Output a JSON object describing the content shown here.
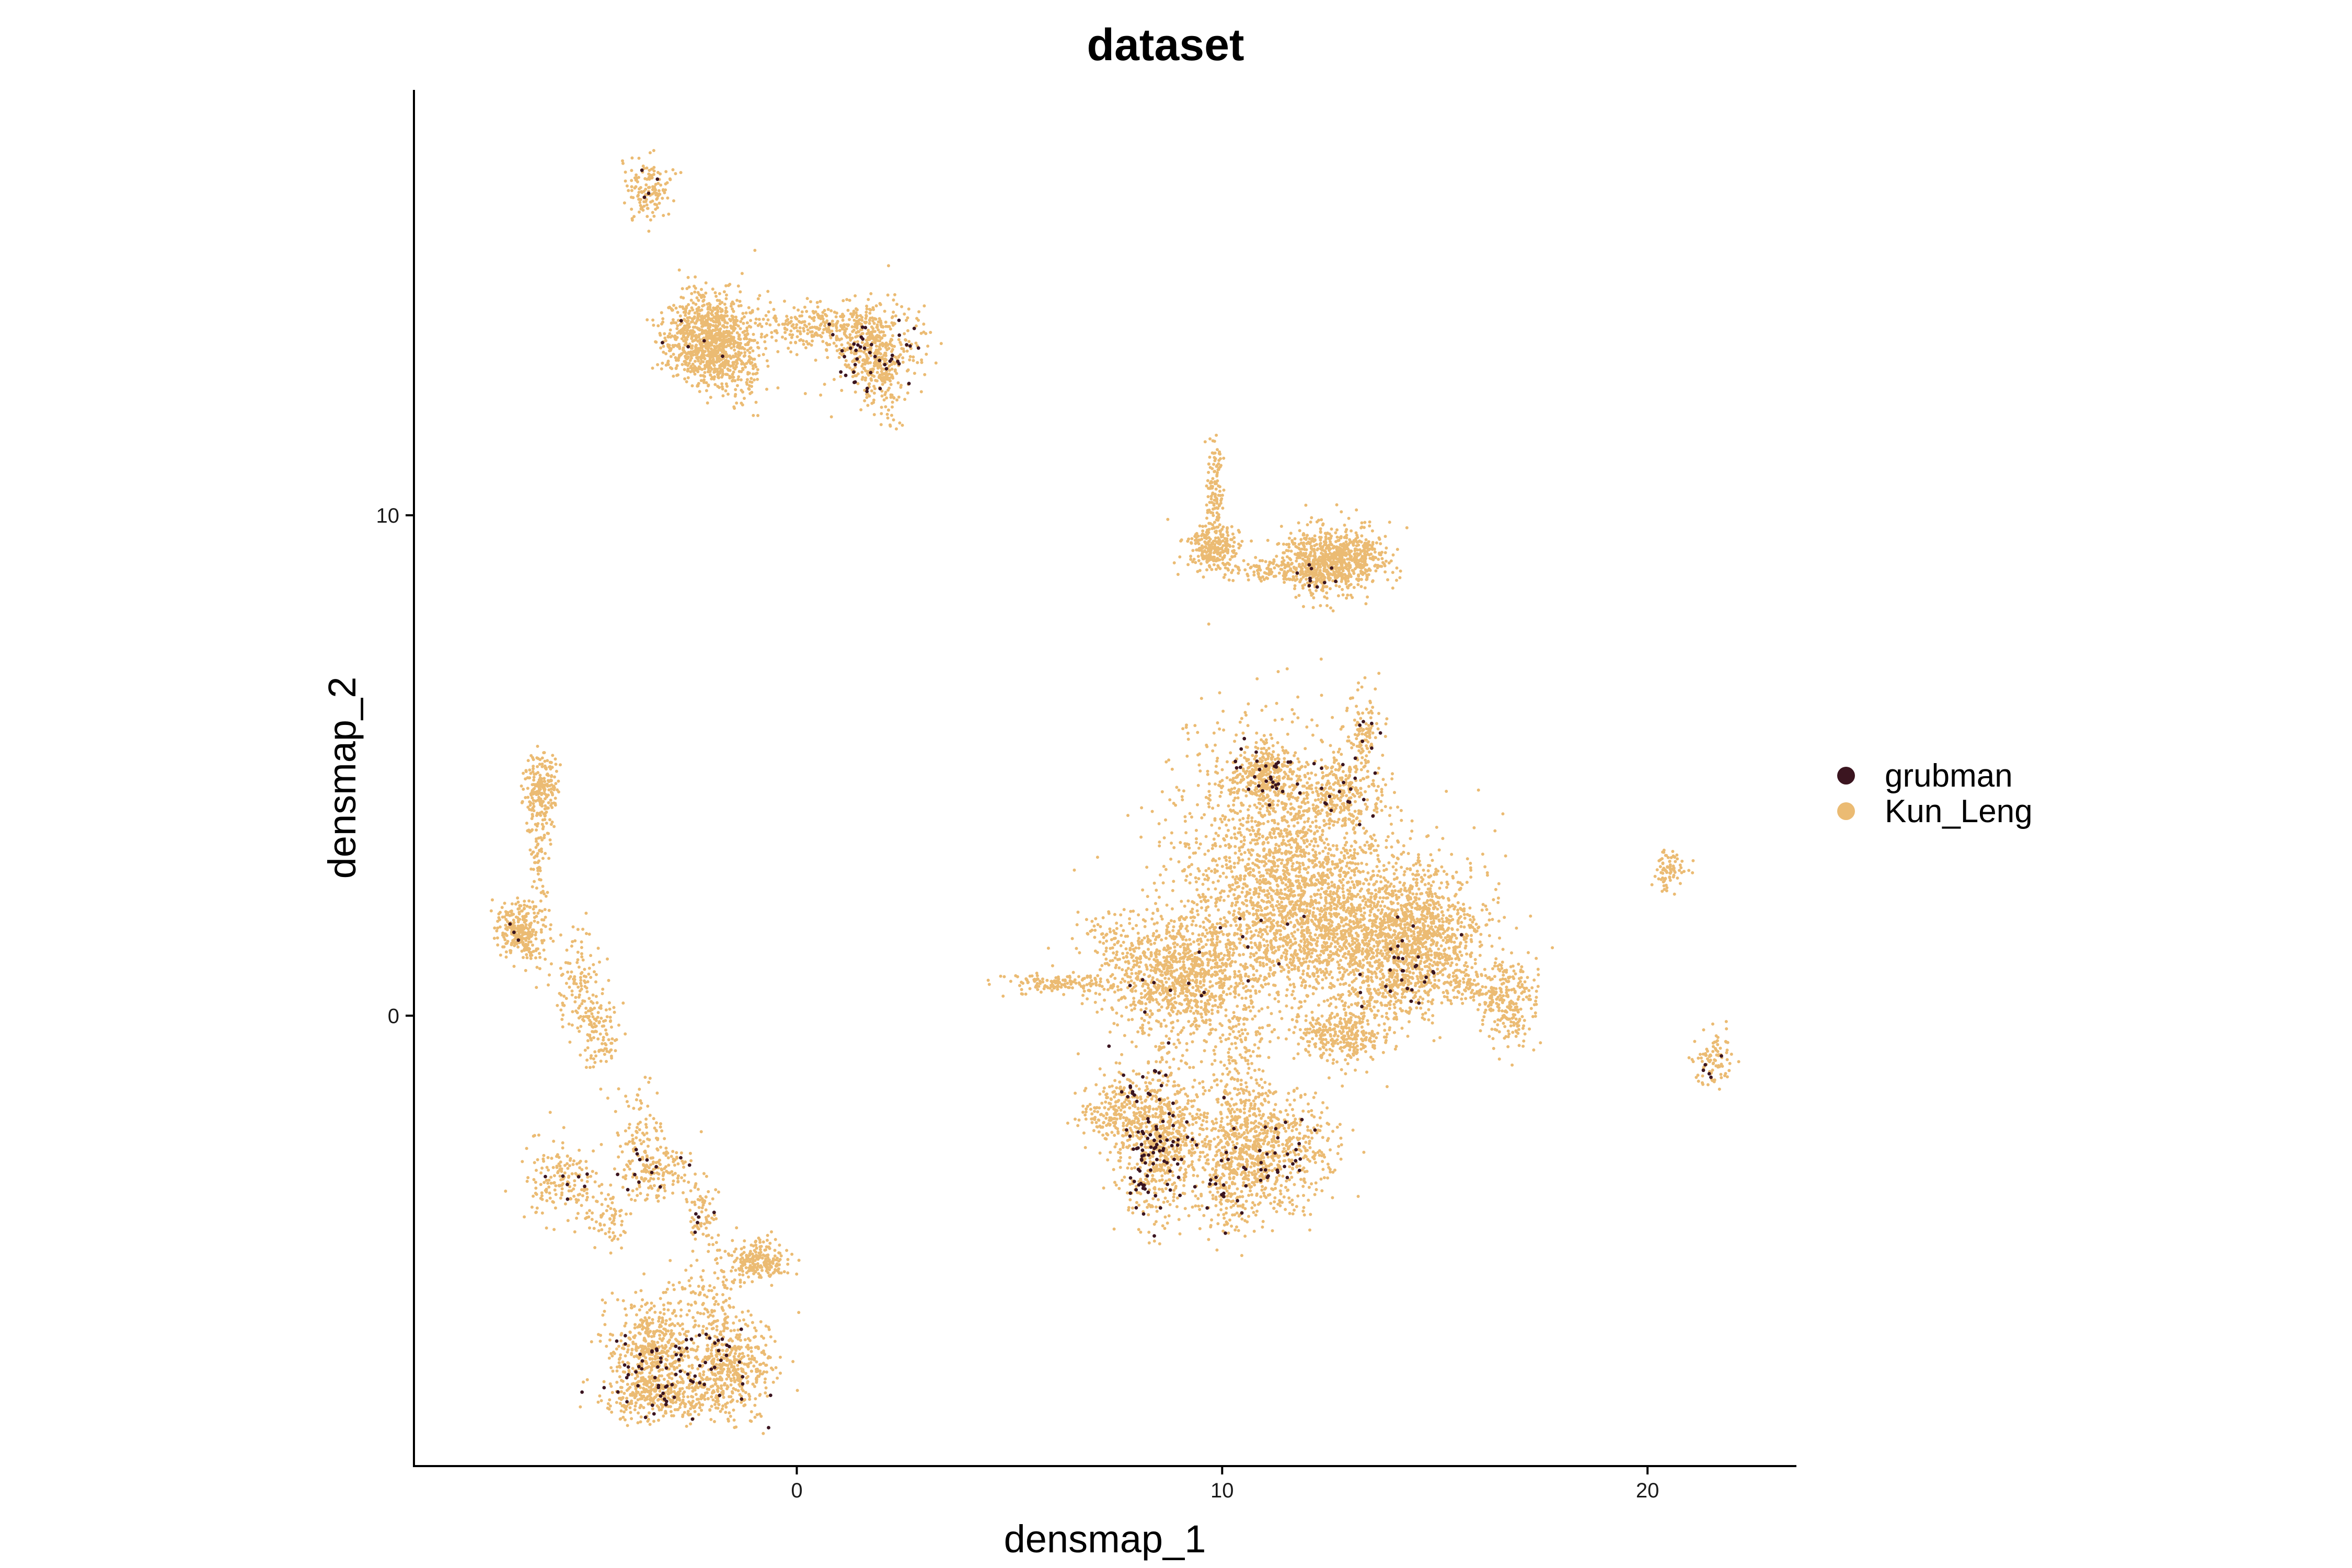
{
  "chart_data": {
    "type": "scatter",
    "title": "dataset",
    "xlabel": "densmap_1",
    "ylabel": "densmap_2",
    "xlim": [
      -9.0,
      23.5
    ],
    "ylim": [
      -9.0,
      18.5
    ],
    "x_ticks": [
      "0",
      "10",
      "20"
    ],
    "x_tick_values": [
      0,
      10,
      20
    ],
    "y_ticks": [
      "0",
      "10"
    ],
    "y_tick_values": [
      0,
      10
    ],
    "grid": false,
    "legend_position": "right",
    "series": [
      {
        "name": "grubman",
        "color": "#3b1520",
        "clusters": [
          {
            "cx": -3.5,
            "cy": 16.5,
            "sx": 0.2,
            "sy": 0.3,
            "n": 4
          },
          {
            "cx": 1.8,
            "cy": 13.2,
            "sx": 0.5,
            "sy": 0.4,
            "n": 35
          },
          {
            "cx": 1.0,
            "cy": 13.4,
            "sx": 0.3,
            "sy": 0.2,
            "n": 8
          },
          {
            "cx": -2.3,
            "cy": 13.5,
            "sx": 0.4,
            "sy": 0.3,
            "n": 5
          },
          {
            "cx": 12.5,
            "cy": 8.8,
            "sx": 0.5,
            "sy": 0.2,
            "n": 10
          },
          {
            "cx": 11.0,
            "cy": 4.8,
            "sx": 0.4,
            "sy": 0.3,
            "n": 30
          },
          {
            "cx": 12.9,
            "cy": 4.5,
            "sx": 0.5,
            "sy": 0.3,
            "n": 18
          },
          {
            "cx": 13.3,
            "cy": 5.6,
            "sx": 0.2,
            "sy": 0.4,
            "n": 8
          },
          {
            "cx": 14.2,
            "cy": 1.0,
            "sx": 0.6,
            "sy": 0.6,
            "n": 30
          },
          {
            "cx": 11.5,
            "cy": 1.5,
            "sx": 0.8,
            "sy": 0.5,
            "n": 10
          },
          {
            "cx": 8.8,
            "cy": 0.5,
            "sx": 0.6,
            "sy": 0.4,
            "n": 8
          },
          {
            "cx": 8.4,
            "cy": -2.7,
            "sx": 0.35,
            "sy": 0.7,
            "n": 85
          },
          {
            "cx": 8.1,
            "cy": -1.3,
            "sx": 0.3,
            "sy": 0.3,
            "n": 12
          },
          {
            "cx": 10.6,
            "cy": -3.0,
            "sx": 0.7,
            "sy": 0.4,
            "n": 30
          },
          {
            "cx": 9.9,
            "cy": -3.6,
            "sx": 0.2,
            "sy": 0.3,
            "n": 10
          },
          {
            "cx": 11.7,
            "cy": -2.7,
            "sx": 0.3,
            "sy": 0.3,
            "n": 10
          },
          {
            "cx": 21.6,
            "cy": -1.0,
            "sx": 0.2,
            "sy": 0.2,
            "n": 5
          },
          {
            "cx": -2.8,
            "cy": -7.1,
            "sx": 0.9,
            "sy": 0.5,
            "n": 80
          },
          {
            "cx": -3.6,
            "cy": -3.1,
            "sx": 0.5,
            "sy": 0.2,
            "n": 14
          },
          {
            "cx": -5.4,
            "cy": -3.2,
            "sx": 0.3,
            "sy": 0.2,
            "n": 6
          },
          {
            "cx": -2.2,
            "cy": -4.0,
            "sx": 0.2,
            "sy": 0.2,
            "n": 5
          },
          {
            "cx": -6.5,
            "cy": 1.8,
            "sx": 0.2,
            "sy": 0.2,
            "n": 3
          }
        ]
      },
      {
        "name": "Kun_Leng",
        "color": "#ebbb73",
        "clusters": [
          {
            "cx": -3.5,
            "cy": 16.5,
            "sx": 0.25,
            "sy": 0.3,
            "n": 140
          },
          {
            "cx": -2.1,
            "cy": 13.5,
            "sx": 0.5,
            "sy": 0.45,
            "n": 900
          },
          {
            "cx": -1.4,
            "cy": 13.1,
            "sx": 0.4,
            "sy": 0.5,
            "n": 150
          },
          {
            "cx": 0.5,
            "cy": 13.8,
            "sx": 0.8,
            "sy": 0.25,
            "n": 280
          },
          {
            "cx": 1.8,
            "cy": 13.3,
            "sx": 0.5,
            "sy": 0.5,
            "n": 420
          },
          {
            "cx": 2.1,
            "cy": 12.5,
            "sx": 0.2,
            "sy": 0.4,
            "n": 60
          },
          {
            "cx": 9.8,
            "cy": 10.5,
            "sx": 0.12,
            "sy": 0.5,
            "n": 120
          },
          {
            "cx": 9.8,
            "cy": 9.3,
            "sx": 0.3,
            "sy": 0.25,
            "n": 260
          },
          {
            "cx": 11.2,
            "cy": 8.9,
            "sx": 0.6,
            "sy": 0.12,
            "n": 120
          },
          {
            "cx": 12.5,
            "cy": 9.1,
            "sx": 0.5,
            "sy": 0.35,
            "n": 700
          },
          {
            "cx": 13.3,
            "cy": 9.2,
            "sx": 0.35,
            "sy": 0.25,
            "n": 120
          },
          {
            "cx": 11.2,
            "cy": 3.0,
            "sx": 1.2,
            "sy": 1.3,
            "n": 1500
          },
          {
            "cx": 12.8,
            "cy": 1.8,
            "sx": 1.3,
            "sy": 0.9,
            "n": 1500
          },
          {
            "cx": 9.0,
            "cy": 0.8,
            "sx": 0.9,
            "sy": 0.6,
            "n": 1000
          },
          {
            "cx": 11.0,
            "cy": 4.8,
            "sx": 0.4,
            "sy": 0.3,
            "n": 280
          },
          {
            "cx": 12.8,
            "cy": 4.4,
            "sx": 0.5,
            "sy": 0.3,
            "n": 220
          },
          {
            "cx": 13.3,
            "cy": 5.6,
            "sx": 0.2,
            "sy": 0.45,
            "n": 120
          },
          {
            "cx": 14.8,
            "cy": 1.7,
            "sx": 0.7,
            "sy": 0.6,
            "n": 700
          },
          {
            "cx": 14.0,
            "cy": 0.8,
            "sx": 0.5,
            "sy": 0.5,
            "n": 300
          },
          {
            "cx": 12.8,
            "cy": -0.4,
            "sx": 0.5,
            "sy": 0.25,
            "n": 280
          },
          {
            "cx": 16.7,
            "cy": 0.3,
            "sx": 0.35,
            "sy": 0.45,
            "n": 260
          },
          {
            "cx": 15.7,
            "cy": 0.6,
            "sx": 0.4,
            "sy": 0.2,
            "n": 80
          },
          {
            "cx": 10.4,
            "cy": -1.0,
            "sx": 0.3,
            "sy": 0.9,
            "n": 180
          },
          {
            "cx": 8.5,
            "cy": -2.4,
            "sx": 0.5,
            "sy": 0.8,
            "n": 700
          },
          {
            "cx": 7.5,
            "cy": -1.9,
            "sx": 0.4,
            "sy": 0.3,
            "n": 180
          },
          {
            "cx": 10.9,
            "cy": -2.7,
            "sx": 0.8,
            "sy": 0.6,
            "n": 850
          },
          {
            "cx": 10.1,
            "cy": -3.7,
            "sx": 0.3,
            "sy": 0.4,
            "n": 100
          },
          {
            "cx": 6.2,
            "cy": 0.65,
            "sx": 0.6,
            "sy": 0.1,
            "n": 140
          },
          {
            "cx": 7.3,
            "cy": 1.6,
            "sx": 0.4,
            "sy": 0.3,
            "n": 60
          },
          {
            "cx": 20.5,
            "cy": 2.9,
            "sx": 0.2,
            "sy": 0.18,
            "n": 80
          },
          {
            "cx": 21.6,
            "cy": -0.9,
            "sx": 0.22,
            "sy": 0.3,
            "n": 90
          },
          {
            "cx": -6.5,
            "cy": 1.7,
            "sx": 0.3,
            "sy": 0.3,
            "n": 280
          },
          {
            "cx": -6.0,
            "cy": 4.5,
            "sx": 0.2,
            "sy": 0.4,
            "n": 220
          },
          {
            "cx": -6.1,
            "cy": 3.2,
            "sx": 0.12,
            "sy": 0.6,
            "n": 60
          },
          {
            "cx": -5.1,
            "cy": 0.7,
            "sx": 0.3,
            "sy": 0.5,
            "n": 110
          },
          {
            "cx": -4.7,
            "cy": -0.3,
            "sx": 0.25,
            "sy": 0.4,
            "n": 120
          },
          {
            "cx": -3.7,
            "cy": -2.6,
            "sx": 0.3,
            "sy": 0.6,
            "n": 120
          },
          {
            "cx": -5.5,
            "cy": -3.3,
            "sx": 0.45,
            "sy": 0.4,
            "n": 170
          },
          {
            "cx": -4.5,
            "cy": -4.1,
            "sx": 0.3,
            "sy": 0.3,
            "n": 60
          },
          {
            "cx": -3.2,
            "cy": -3.1,
            "sx": 0.4,
            "sy": 0.3,
            "n": 120
          },
          {
            "cx": -2.2,
            "cy": -4.0,
            "sx": 0.2,
            "sy": 0.3,
            "n": 70
          },
          {
            "cx": -0.9,
            "cy": -4.9,
            "sx": 0.35,
            "sy": 0.2,
            "n": 220
          },
          {
            "cx": -2.0,
            "cy": -5.6,
            "sx": 0.4,
            "sy": 0.4,
            "n": 100
          },
          {
            "cx": -3.4,
            "cy": -6.7,
            "sx": 0.5,
            "sy": 0.5,
            "n": 500
          },
          {
            "cx": -1.6,
            "cy": -7.0,
            "sx": 0.5,
            "sy": 0.5,
            "n": 450
          },
          {
            "cx": -3.0,
            "cy": -7.6,
            "sx": 0.8,
            "sy": 0.25,
            "n": 320
          }
        ]
      }
    ]
  }
}
